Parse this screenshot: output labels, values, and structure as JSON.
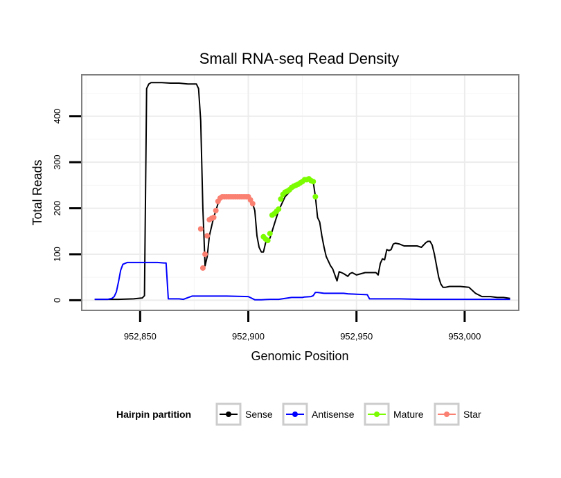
{
  "chart_data": {
    "type": "line",
    "title": "Small RNA-seq Read Density",
    "xlabel": "Genomic Position",
    "ylabel": "Total Reads",
    "xlim": [
      952823,
      953025
    ],
    "ylim": [
      -22,
      490
    ],
    "x_ticks": [
      952850,
      952900,
      952950,
      953000
    ],
    "x_tick_labels": [
      "952,850",
      "952,900",
      "952,950",
      "953,000"
    ],
    "y_ticks": [
      0,
      100,
      200,
      300,
      400
    ],
    "y_tick_labels": [
      "0",
      "100",
      "200",
      "300",
      "400"
    ],
    "grid": true,
    "legend_position": "bottom",
    "legend": {
      "title": "Hairpin partition",
      "entries": [
        {
          "label": "Sense",
          "color": "#000000"
        },
        {
          "label": "Antisense",
          "color": "#0000ff"
        },
        {
          "label": "Mature",
          "color": "#7cfc00"
        },
        {
          "label": "Star",
          "color": "#fa8072"
        }
      ]
    },
    "series": [
      {
        "name": "Sense",
        "color": "#000000",
        "line": true,
        "markers": false,
        "x": [
          952829,
          952840,
          952847,
          952851,
          952852,
          952853,
          952854,
          952855,
          952860,
          952864,
          952868,
          952872,
          952876,
          952877,
          952878,
          952879,
          952880,
          952881,
          952882,
          952884,
          952886,
          952888,
          952892,
          952896,
          952900,
          952902,
          952903,
          952904,
          952905,
          952906,
          952907,
          952908,
          952910,
          952912,
          952914,
          952917,
          952920,
          952923,
          952926,
          952929,
          952930,
          952931,
          952932,
          952933,
          952934,
          952935,
          952936,
          952937,
          952938,
          952939,
          952940,
          952941,
          952942,
          952943,
          952944,
          952946,
          952947,
          952948,
          952950,
          952954,
          952958,
          952959,
          952960,
          952961,
          952962,
          952963,
          952964,
          952965,
          952966,
          952967,
          952968,
          952970,
          952972,
          952974,
          952978,
          952980,
          952982,
          952983,
          952984,
          952985,
          952986,
          952987,
          952988,
          952989,
          952990,
          952991,
          952993,
          952995,
          952998,
          953002,
          953005,
          953008,
          953010,
          953012,
          953015,
          953018,
          953021
        ],
        "y": [
          2,
          2,
          3,
          5,
          10,
          460,
          470,
          473,
          473,
          472,
          472,
          470,
          470,
          460,
          390,
          200,
          75,
          95,
          140,
          180,
          210,
          225,
          225,
          225,
          225,
          210,
          195,
          140,
          115,
          105,
          105,
          125,
          135,
          165,
          195,
          225,
          240,
          250,
          262,
          262,
          258,
          225,
          180,
          170,
          140,
          115,
          95,
          85,
          75,
          68,
          55,
          42,
          62,
          60,
          58,
          52,
          58,
          60,
          55,
          60,
          60,
          60,
          55,
          80,
          90,
          88,
          110,
          108,
          110,
          122,
          124,
          122,
          118,
          118,
          118,
          115,
          125,
          128,
          128,
          120,
          100,
          75,
          50,
          35,
          28,
          28,
          30,
          30,
          30,
          28,
          15,
          8,
          8,
          8,
          6,
          6,
          4
        ]
      },
      {
        "name": "Antisense",
        "color": "#0000ff",
        "line": true,
        "markers": false,
        "x": [
          952829,
          952835,
          952837,
          952838,
          952839,
          952840,
          952841,
          952842,
          952844,
          952850,
          952858,
          952861,
          952862,
          952863,
          952868,
          952870,
          952874,
          952890,
          952900,
          952903,
          952906,
          952910,
          952914,
          952920,
          952925,
          952926,
          952929,
          952930,
          952931,
          952932,
          952935,
          952938,
          952940,
          952944,
          952946,
          952950,
          952955,
          952956,
          952960,
          952970,
          952980,
          953000,
          953021
        ],
        "y": [
          2,
          2,
          4,
          8,
          18,
          40,
          65,
          78,
          82,
          82,
          82,
          81,
          81,
          3,
          3,
          2,
          9,
          9,
          8,
          1,
          1,
          2,
          2,
          6,
          6,
          7,
          8,
          10,
          17,
          17,
          15,
          15,
          15,
          15,
          14,
          13,
          12,
          3,
          3,
          3,
          2,
          2,
          2
        ]
      },
      {
        "name": "Mature",
        "color": "#7cfc00",
        "line": false,
        "markers": true,
        "x": [
          952907,
          952908,
          952909,
          952910,
          952911,
          952912,
          952913,
          952914,
          952915,
          952916,
          952917,
          952918,
          952919,
          952920,
          952921,
          952922,
          952923,
          952924,
          952925,
          952926,
          952927,
          952928,
          952929,
          952930,
          952931
        ],
        "y": [
          138,
          133,
          130,
          145,
          185,
          188,
          193,
          198,
          220,
          230,
          235,
          237,
          240,
          245,
          248,
          250,
          252,
          255,
          258,
          262,
          262,
          264,
          260,
          258,
          225
        ]
      },
      {
        "name": "Star",
        "color": "#fa8072",
        "line": false,
        "markers": true,
        "x": [
          952878,
          952879,
          952880,
          952881,
          952882,
          952883,
          952884,
          952885,
          952886,
          952887,
          952888,
          952889,
          952890,
          952891,
          952892,
          952893,
          952894,
          952895,
          952896,
          952897,
          952898,
          952899,
          952900,
          952901,
          952902
        ],
        "y": [
          155,
          70,
          100,
          140,
          175,
          178,
          180,
          195,
          215,
          222,
          225,
          225,
          225,
          225,
          225,
          225,
          225,
          225,
          225,
          225,
          225,
          225,
          225,
          218,
          210
        ]
      }
    ]
  }
}
